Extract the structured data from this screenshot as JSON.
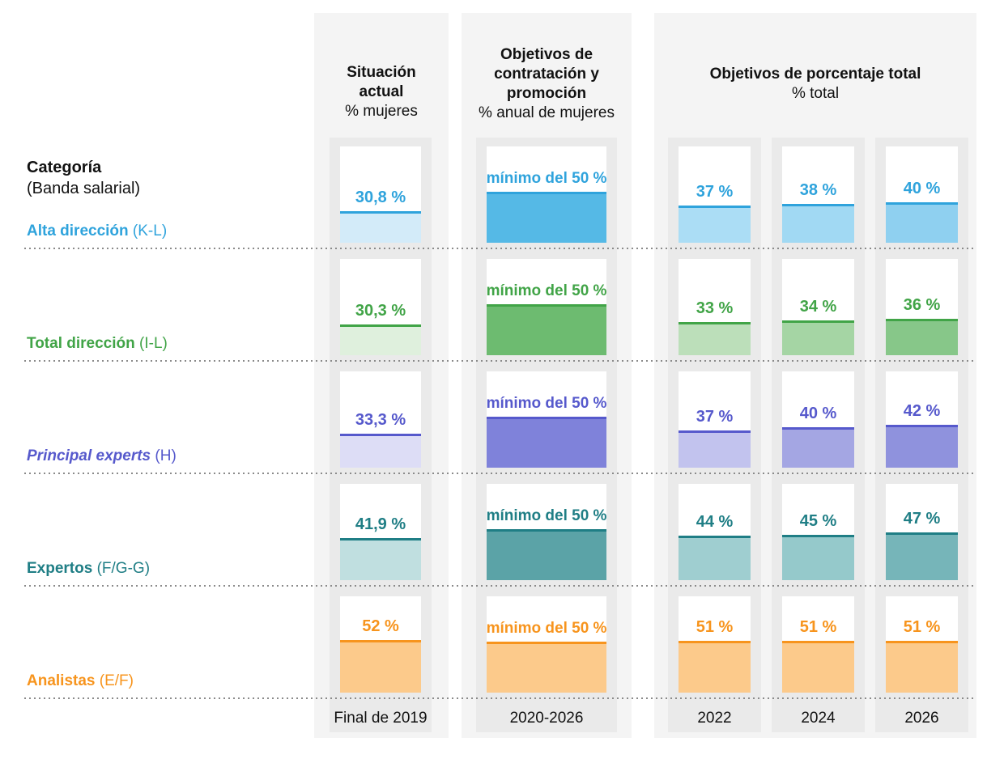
{
  "category_header": {
    "title": "Categoría",
    "subtitle": "(Banda salarial)"
  },
  "columns": [
    {
      "title": "Situación actual",
      "subtitle": "% mujeres",
      "axis": "Final de 2019"
    },
    {
      "title": "Objetivos de contratación y promoción",
      "subtitle": "% anual de mujeres",
      "axis": "2020-2026"
    },
    {
      "title": "Objetivos de porcentaje total",
      "subtitle": "% total",
      "axis_years": [
        "2022",
        "2024",
        "2026"
      ]
    }
  ],
  "rows": [
    {
      "label": "Alta dirección",
      "band": "(K-L)",
      "italic": false,
      "accent": "#2FA3DC",
      "fill_light": "#D3EBF9",
      "fill_minimo": "#55B9E6",
      "fills_targets": [
        "#ABDDF5",
        "#A1D9F3",
        "#8FD0F0"
      ],
      "current": {
        "label": "30,8 %",
        "value": 30.8
      },
      "minimo": {
        "label": "mínimo del 50 %",
        "value": 50
      },
      "targets": [
        {
          "label": "37 %",
          "value": 37
        },
        {
          "label": "38 %",
          "value": 38
        },
        {
          "label": "40 %",
          "value": 40
        }
      ]
    },
    {
      "label": "Total dirección",
      "band": "(I-L)",
      "italic": false,
      "accent": "#41A447",
      "fill_light": "#DFF0DD",
      "fill_minimo": "#6DBB70",
      "fills_targets": [
        "#BCDFBA",
        "#A5D5A4",
        "#87C789"
      ],
      "current": {
        "label": "30,3 %",
        "value": 30.3
      },
      "minimo": {
        "label": "mínimo del 50 %",
        "value": 50
      },
      "targets": [
        {
          "label": "33 %",
          "value": 33
        },
        {
          "label": "34 %",
          "value": 34
        },
        {
          "label": "36 %",
          "value": 36
        }
      ]
    },
    {
      "label": "Principal experts",
      "band": "(H)",
      "italic": true,
      "accent": "#5659CC",
      "fill_light": "#DDDDF6",
      "fill_minimo": "#7F82DA",
      "fills_targets": [
        "#C2C3EE",
        "#A4A6E3",
        "#8F92DD"
      ],
      "current": {
        "label": "33,3 %",
        "value": 33.3
      },
      "minimo": {
        "label": "mínimo del 50 %",
        "value": 50
      },
      "targets": [
        {
          "label": "37 %",
          "value": 37
        },
        {
          "label": "40 %",
          "value": 40
        },
        {
          "label": "42 %",
          "value": 42
        }
      ]
    },
    {
      "label": "Expertos",
      "band": "(F/G-G)",
      "italic": false,
      "accent": "#1F7E85",
      "fill_light": "#C0DFE0",
      "fill_minimo": "#5BA3A7",
      "fills_targets": [
        "#9FCED0",
        "#95C9CB",
        "#76B5B9"
      ],
      "current": {
        "label": "41,9 %",
        "value": 41.9
      },
      "minimo": {
        "label": "mínimo del 50 %",
        "value": 50
      },
      "targets": [
        {
          "label": "44 %",
          "value": 44
        },
        {
          "label": "45 %",
          "value": 45
        },
        {
          "label": "47 %",
          "value": 47
        }
      ]
    },
    {
      "label": "Analistas",
      "band": "(E/F)",
      "italic": false,
      "accent": "#F7941D",
      "fill_light": "#FCCA8B",
      "fill_minimo": "#FCCA8B",
      "fills_targets": [
        "#FCCA8B",
        "#FCCA8B",
        "#FCCA8B"
      ],
      "current": {
        "label": "52 %",
        "value": 52
      },
      "minimo": {
        "label": "mínimo del 50 %",
        "value": 50
      },
      "targets": [
        {
          "label": "51 %",
          "value": 51
        },
        {
          "label": "51 %",
          "value": 51
        },
        {
          "label": "51 %",
          "value": 51
        }
      ]
    }
  ],
  "chart_data": {
    "type": "bar",
    "unit": "%",
    "categories": [
      "Alta dirección (K-L)",
      "Total dirección (I-L)",
      "Principal experts (H)",
      "Expertos (F/G-G)",
      "Analistas (E/F)"
    ],
    "series": [
      {
        "name": "Situación actual % mujeres — Final de 2019",
        "values": [
          30.8,
          30.3,
          33.3,
          41.9,
          52
        ]
      },
      {
        "name": "Objetivos de contratación y promoción % anual de mujeres — 2020-2026 (mínimo del 50 %)",
        "values": [
          50,
          50,
          50,
          50,
          50
        ]
      },
      {
        "name": "Objetivos de porcentaje total — 2022",
        "values": [
          37,
          33,
          37,
          44,
          51
        ]
      },
      {
        "name": "Objetivos de porcentaje total — 2024",
        "values": [
          38,
          34,
          40,
          45,
          51
        ]
      },
      {
        "name": "Objetivos de porcentaje total — 2026",
        "values": [
          40,
          36,
          42,
          47,
          51
        ]
      }
    ],
    "ylim": [
      0,
      100
    ],
    "grid": false,
    "legend_position": "none",
    "notes": "Bars grow from the bottom of each white cell; value labels sit above each bar; 'mínimo del 50 %' labels the annual hiring/promotion target column."
  }
}
